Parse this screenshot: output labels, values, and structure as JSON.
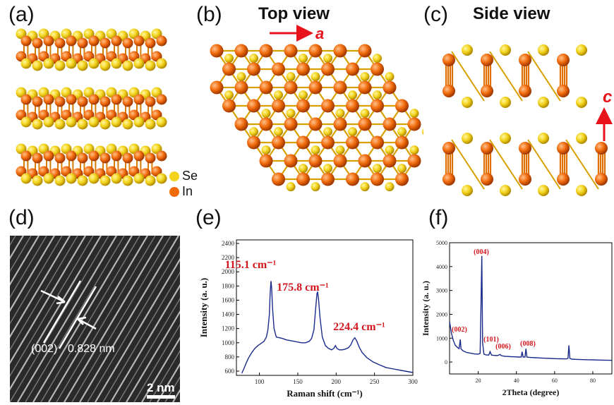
{
  "panels": {
    "a": {
      "label": "(a)",
      "legend": [
        {
          "name": "Se",
          "color": "#f2d21a"
        },
        {
          "name": "In",
          "color": "#f06a0a"
        }
      ]
    },
    "b": {
      "label": "(b)",
      "title": "Top view",
      "axis": "a"
    },
    "c": {
      "label": "(c)",
      "title": "Side view",
      "axis": "c"
    },
    "d": {
      "label": "(d)",
      "plane": "(002)",
      "spacing": "0.828 nm",
      "scale": "2 nm"
    },
    "e": {
      "label": "(e)"
    },
    "f": {
      "label": "(f)"
    }
  },
  "colors": {
    "se": "#f2d21a",
    "in": "#f06a0a",
    "arrow": "#e8121a",
    "peak_label": "#d0181e",
    "series": "#1a2a8a"
  },
  "chart_data": [
    {
      "type": "line",
      "xlabel": "Raman shift (cm⁻¹)",
      "ylabel": "Intensity (a. u.)",
      "xlim": [
        70,
        300
      ],
      "ylim": [
        540,
        2450
      ],
      "xticks": [
        100,
        150,
        200,
        250,
        300
      ],
      "yticks": [
        600,
        800,
        1000,
        1200,
        1400,
        1600,
        1800,
        2000,
        2200,
        2400
      ],
      "annotations": [
        {
          "text": "115.1 cm⁻¹",
          "x": 115.1,
          "y": 1870
        },
        {
          "text": "175.8 cm⁻¹",
          "x": 175.8,
          "y": 1720
        },
        {
          "text": "224.4 cm⁻¹",
          "x": 224.4,
          "y": 1070
        }
      ],
      "series": [
        {
          "x": [
            77,
            80,
            83,
            86,
            90,
            94,
            98,
            102,
            106,
            109,
            111,
            113,
            114,
            115.1,
            116,
            117,
            119,
            122,
            126,
            130,
            135,
            140,
            145,
            150,
            155,
            160,
            165,
            168,
            171,
            173,
            175,
            175.8,
            177,
            179,
            182,
            186,
            190,
            194,
            197,
            199,
            201,
            204,
            208,
            212,
            216,
            219,
            222,
            224.4,
            227,
            230,
            234,
            240,
            248,
            256,
            265,
            275,
            285,
            295,
            300
          ],
          "y": [
            570,
            640,
            720,
            790,
            860,
            920,
            960,
            990,
            1020,
            1080,
            1180,
            1400,
            1700,
            1870,
            1760,
            1500,
            1200,
            1080,
            1070,
            1060,
            1040,
            1030,
            1020,
            1010,
            1000,
            1000,
            1020,
            1060,
            1180,
            1450,
            1690,
            1720,
            1620,
            1350,
            1080,
            960,
            920,
            900,
            920,
            960,
            920,
            900,
            900,
            910,
            930,
            970,
            1040,
            1070,
            1020,
            940,
            860,
            790,
            730,
            690,
            650,
            630,
            610,
            590,
            580
          ]
        }
      ]
    },
    {
      "type": "line",
      "xlabel": "2Theta (degree)",
      "ylabel": "Intensity (a. u.)",
      "xlim": [
        5,
        90
      ],
      "ylim": [
        -500,
        5000
      ],
      "xticks": [
        20,
        40,
        60,
        80
      ],
      "yticks": [
        0,
        1000,
        2000,
        3000,
        4000,
        5000
      ],
      "annotations": [
        {
          "text": "(002)",
          "x": 11,
          "y": 1000
        },
        {
          "text": "(004)",
          "x": 21.9,
          "y": 4350
        },
        {
          "text": "(101)",
          "x": 26.5,
          "y": 550
        },
        {
          "text": "(006)",
          "x": 33.5,
          "y": 350
        },
        {
          "text": "(008)",
          "x": 44.5,
          "y": 550
        }
      ],
      "series": [
        {
          "x": [
            5,
            6,
            7,
            8,
            9,
            10,
            10.6,
            11,
            12,
            14,
            16,
            18,
            20,
            21,
            21.5,
            21.9,
            22.3,
            23,
            24,
            25.5,
            26.2,
            27,
            28,
            30,
            31.5,
            32,
            33,
            34,
            35,
            37,
            39,
            41,
            42.5,
            43,
            43.5,
            44.5,
            45,
            45.5,
            46,
            48,
            50,
            52,
            55,
            58,
            61,
            64,
            66,
            67,
            67.5,
            68,
            69,
            72,
            75,
            78,
            80,
            82,
            85,
            88,
            90
          ],
          "y": [
            1700,
            1200,
            900,
            700,
            620,
            560,
            950,
            560,
            470,
            400,
            370,
            340,
            330,
            360,
            2500,
            4450,
            800,
            330,
            300,
            290,
            430,
            290,
            280,
            270,
            320,
            270,
            250,
            240,
            235,
            225,
            220,
            210,
            210,
            430,
            210,
            210,
            560,
            210,
            200,
            190,
            180,
            170,
            160,
            150,
            140,
            135,
            130,
            150,
            700,
            150,
            120,
            110,
            100,
            95,
            90,
            85,
            80,
            75,
            70
          ]
        }
      ]
    }
  ]
}
